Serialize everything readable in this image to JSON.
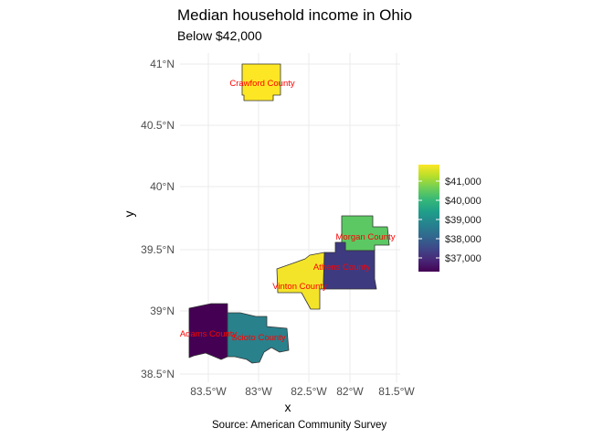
{
  "title": "Median household income in Ohio",
  "subtitle": "Below $42,000",
  "caption": "Source: American Community Survey",
  "axes": {
    "x_title": "x",
    "y_title": "y",
    "x_ticks": [
      "83.5°W",
      "83°W",
      "82.5°W",
      "82°W",
      "81.5°W"
    ],
    "y_ticks": [
      "41°N",
      "40.5°N",
      "40°N",
      "39.5°N",
      "39°N",
      "38.5°N"
    ]
  },
  "legend": {
    "ticks": [
      "$41,000",
      "$40,000",
      "$39,000",
      "$38,000",
      "$37,000"
    ],
    "palette": [
      "#440154",
      "#482878",
      "#3e4989",
      "#31688e",
      "#26828e",
      "#1f9e89",
      "#35b779",
      "#6ece58",
      "#b5de2b",
      "#fde725"
    ]
  },
  "counties": [
    {
      "name": "Crawford County",
      "fill": "#fde725"
    },
    {
      "name": "Morgan County",
      "fill": "#5cc863"
    },
    {
      "name": "Athens County",
      "fill": "#3e3a80"
    },
    {
      "name": "Vinton County",
      "fill": "#f3e42a"
    },
    {
      "name": "Adams County",
      "fill": "#440154"
    },
    {
      "name": "Scioto County",
      "fill": "#29818c"
    }
  ]
}
